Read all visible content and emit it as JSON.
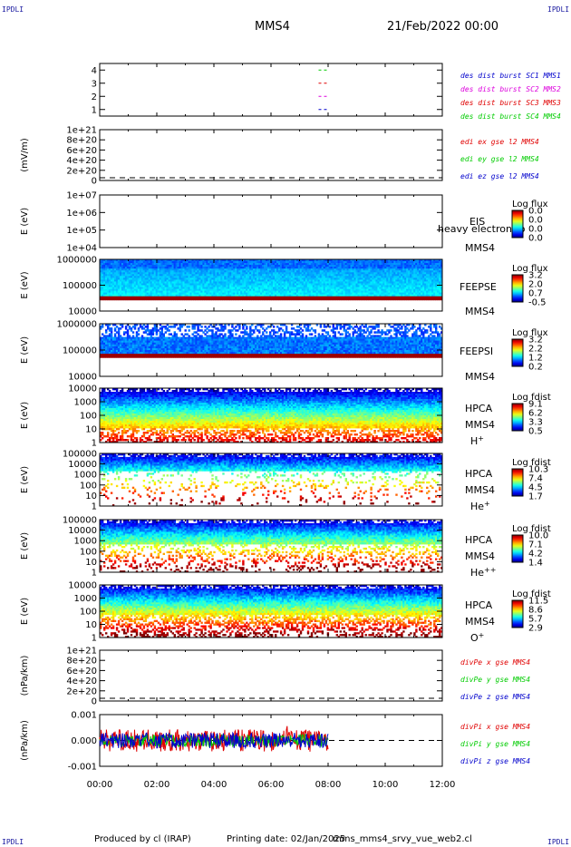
{
  "header": {
    "corner_tl": "IPDLI",
    "corner_tr": "IPDLI",
    "corner_bl": "IPDLI",
    "corner_br": "IPDLI",
    "title": "MMS4",
    "date": "21/Feb/2022 00:00"
  },
  "footer": {
    "produced": "Produced by cl (IRAP)",
    "printing": "Printing date: 02/Jan/2025",
    "file": "mms_mms4_srvy_vue_web2.cl"
  },
  "colors": {
    "red": "#e00000",
    "green": "#00cc00",
    "blue": "#0000cc",
    "magenta": "#dd00dd"
  },
  "x_ticks": [
    "00:00",
    "02:00",
    "04:00",
    "06:00",
    "08:00",
    "10:00",
    "12:00"
  ],
  "chart_data": [
    {
      "type": "scatter",
      "ylim": [
        0.5,
        4.5
      ],
      "y_ticks": [
        "4",
        "3",
        "2",
        "1"
      ],
      "legend": [
        {
          "text": "des dist burst SC1 MMS1",
          "color": "#0000cc"
        },
        {
          "text": "des dist burst SC2 MMS2",
          "color": "#dd00dd"
        },
        {
          "text": "des dist burst SC3 MMS3",
          "color": "#e00000"
        },
        {
          "text": "des dist burst SC4 MMS4",
          "color": "#00cc00"
        }
      ],
      "series": [
        {
          "y": 4,
          "x_start": "07:40",
          "x_end": "08:00",
          "color": "#00cc00"
        },
        {
          "y": 3,
          "x_start": "07:40",
          "x_end": "08:00",
          "color": "#e00000"
        },
        {
          "y": 2,
          "x_start": "07:40",
          "x_end": "08:00",
          "color": "#dd00dd"
        },
        {
          "y": 1,
          "x_start": "07:40",
          "x_end": "08:00",
          "color": "#0000cc"
        }
      ]
    },
    {
      "type": "line",
      "ylabel": "(mV/m)",
      "y_ticks": [
        "1e+21",
        "8e+20",
        "6e+20",
        "4e+20",
        "2e+20",
        "0"
      ],
      "reference_line": 0,
      "legend": [
        {
          "text": "edi ex gse l2 MMS4",
          "color": "#e00000"
        },
        {
          "text": "edi ey gse l2 MMS4",
          "color": "#00cc00"
        },
        {
          "text": "edi ez gse l2 MMS4",
          "color": "#0000cc"
        }
      ]
    },
    {
      "type": "heatmap",
      "ylabel": "E (eV)",
      "y_ticks": [
        "1e+07",
        "1e+06",
        "1e+05",
        "1e+04"
      ],
      "instrument": "EIS",
      "instrument_sub": "MMS4",
      "overlay_text": "heavy electron to",
      "colorbar_title": "Log flux",
      "colorbar_ticks": [
        "0.0",
        "0.0",
        "0.0",
        "0.0"
      ],
      "style": "empty"
    },
    {
      "type": "heatmap",
      "ylabel": "E (eV)",
      "y_ticks": [
        "1000000",
        "100000",
        "10000"
      ],
      "instrument": "FEEPSE",
      "instrument_sub": "MMS4",
      "colorbar_title": "Log flux",
      "colorbar_ticks": [
        "3.2",
        "2.0",
        "0.7",
        "-0.5"
      ],
      "style": "feepse"
    },
    {
      "type": "heatmap",
      "ylabel": "E (eV)",
      "y_ticks": [
        "1000000",
        "100000",
        "10000"
      ],
      "instrument": "FEEPSI",
      "instrument_sub": "MMS4",
      "colorbar_title": "Log flux",
      "colorbar_ticks": [
        "3.2",
        "2.2",
        "1.2",
        "0.2"
      ],
      "style": "feepsi"
    },
    {
      "type": "heatmap",
      "ylabel": "E (eV)",
      "y_ticks": [
        "10000",
        "1000",
        "100",
        "10",
        "1"
      ],
      "instrument": "HPCA",
      "instrument_sub": "MMS4",
      "species": "H",
      "species_sup": "+",
      "colorbar_title": "Log fdist",
      "colorbar_ticks": [
        "9.1",
        "6.2",
        "3.3",
        "0.5"
      ],
      "style": "hplus"
    },
    {
      "type": "heatmap",
      "ylabel": "E (eV)",
      "y_ticks": [
        "100000",
        "10000",
        "1000",
        "100",
        "10",
        "1"
      ],
      "instrument": "HPCA",
      "instrument_sub": "MMS4",
      "species": "He",
      "species_sup": "+",
      "colorbar_title": "Log fdist",
      "colorbar_ticks": [
        "10.3",
        "7.4",
        "4.5",
        "1.7"
      ],
      "style": "heplus"
    },
    {
      "type": "heatmap",
      "ylabel": "E (eV)",
      "y_ticks": [
        "100000",
        "10000",
        "1000",
        "100",
        "10",
        "1"
      ],
      "instrument": "HPCA",
      "instrument_sub": "MMS4",
      "species": "He",
      "species_sup": "++",
      "colorbar_title": "Log fdist",
      "colorbar_ticks": [
        "10.0",
        "7.1",
        "4.2",
        "1.4"
      ],
      "style": "heplusplus"
    },
    {
      "type": "heatmap",
      "ylabel": "E (eV)",
      "y_ticks": [
        "10000",
        "1000",
        "100",
        "10",
        "1"
      ],
      "instrument": "HPCA",
      "instrument_sub": "MMS4",
      "species": "O",
      "species_sup": "+",
      "colorbar_title": "Log fdist",
      "colorbar_ticks": [
        "11.5",
        "8.6",
        "5.7",
        "2.9"
      ],
      "style": "oplus"
    },
    {
      "type": "line",
      "ylabel": "(nPa/km)",
      "y_ticks": [
        "1e+21",
        "8e+20",
        "6e+20",
        "4e+20",
        "2e+20",
        "0"
      ],
      "reference_line": 0,
      "legend": [
        {
          "text": "divPe x gse MMS4",
          "color": "#e00000"
        },
        {
          "text": "divPe y gse MMS4",
          "color": "#00cc00"
        },
        {
          "text": "divPe z gse MMS4",
          "color": "#0000cc"
        }
      ]
    },
    {
      "type": "line",
      "ylabel": "(nPa/km)",
      "y_ticks": [
        "0.001",
        "0.000",
        "-0.001"
      ],
      "ylim": [
        -0.0015,
        0.0015
      ],
      "reference_line": 0,
      "data_end": "08:00",
      "legend": [
        {
          "text": "divPi x gse MMS4",
          "color": "#e00000"
        },
        {
          "text": "divPi y gse MMS4",
          "color": "#00cc00"
        },
        {
          "text": "divPi z gse MMS4",
          "color": "#0000cc"
        }
      ]
    }
  ]
}
